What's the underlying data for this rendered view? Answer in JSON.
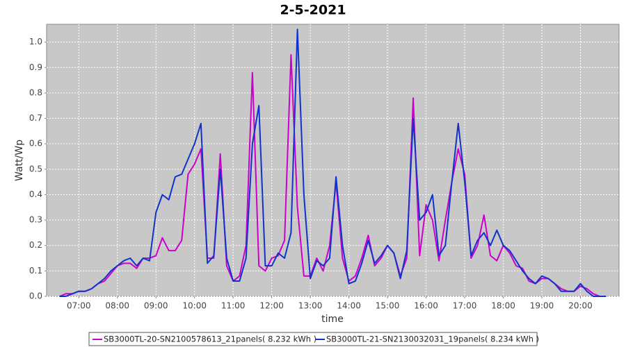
{
  "chart_data": {
    "type": "line",
    "title": "2-5-2021",
    "x_label": "time",
    "y_label": "Watt/Wp",
    "x": [
      "06:30",
      "06:40",
      "06:50",
      "07:00",
      "07:10",
      "07:20",
      "07:30",
      "07:40",
      "07:50",
      "08:00",
      "08:10",
      "08:20",
      "08:30",
      "08:40",
      "08:50",
      "09:00",
      "09:10",
      "09:20",
      "09:30",
      "09:40",
      "09:50",
      "10:00",
      "10:10",
      "10:20",
      "10:30",
      "10:40",
      "10:50",
      "11:00",
      "11:10",
      "11:20",
      "11:30",
      "11:40",
      "11:50",
      "12:00",
      "12:10",
      "12:20",
      "12:30",
      "12:40",
      "12:50",
      "13:00",
      "13:10",
      "13:20",
      "13:30",
      "13:40",
      "13:50",
      "14:00",
      "14:10",
      "14:20",
      "14:30",
      "14:40",
      "14:50",
      "15:00",
      "15:10",
      "15:20",
      "15:30",
      "15:40",
      "15:50",
      "16:00",
      "16:10",
      "16:20",
      "16:30",
      "16:40",
      "16:50",
      "17:00",
      "17:10",
      "17:20",
      "17:30",
      "17:40",
      "17:50",
      "18:00",
      "18:10",
      "18:20",
      "18:30",
      "18:40",
      "18:50",
      "19:00",
      "19:10",
      "19:20",
      "19:30",
      "19:40",
      "19:50",
      "20:00",
      "20:10",
      "20:20",
      "20:30",
      "20:40"
    ],
    "series": [
      {
        "name": "SB3000TL-20-SN2100578613_21panels( 8.232 kWh )",
        "color": "#cc00cc",
        "values": [
          0,
          0.01,
          0.01,
          0.02,
          0.02,
          0.03,
          0.05,
          0.06,
          0.09,
          0.12,
          0.13,
          0.13,
          0.11,
          0.15,
          0.15,
          0.16,
          0.23,
          0.18,
          0.18,
          0.22,
          0.48,
          0.52,
          0.58,
          0.15,
          0.15,
          0.56,
          0.12,
          0.06,
          0.08,
          0.2,
          0.88,
          0.12,
          0.1,
          0.15,
          0.16,
          0.22,
          0.95,
          0.35,
          0.08,
          0.08,
          0.15,
          0.1,
          0.2,
          0.45,
          0.15,
          0.06,
          0.08,
          0.15,
          0.24,
          0.12,
          0.15,
          0.2,
          0.17,
          0.08,
          0.15,
          0.78,
          0.16,
          0.36,
          0.3,
          0.14,
          0.3,
          0.45,
          0.58,
          0.48,
          0.15,
          0.2,
          0.32,
          0.16,
          0.14,
          0.2,
          0.17,
          0.12,
          0.11,
          0.06,
          0.05,
          0.07,
          0.07,
          0.05,
          0.03,
          0.02,
          0.02,
          0.04,
          0.03,
          0.01,
          0,
          0
        ]
      },
      {
        "name": "SB3000TL-21-SN2130032031_19panels( 8.234 kWh )",
        "color": "#1133cc",
        "values": [
          0,
          0,
          0.01,
          0.02,
          0.02,
          0.03,
          0.05,
          0.07,
          0.1,
          0.12,
          0.14,
          0.15,
          0.12,
          0.15,
          0.14,
          0.33,
          0.4,
          0.38,
          0.47,
          0.48,
          0.54,
          0.6,
          0.68,
          0.13,
          0.16,
          0.5,
          0.15,
          0.06,
          0.06,
          0.15,
          0.6,
          0.75,
          0.12,
          0.12,
          0.17,
          0.15,
          0.25,
          1.05,
          0.4,
          0.07,
          0.14,
          0.12,
          0.15,
          0.47,
          0.2,
          0.05,
          0.06,
          0.13,
          0.22,
          0.13,
          0.16,
          0.2,
          0.17,
          0.07,
          0.18,
          0.7,
          0.3,
          0.33,
          0.4,
          0.16,
          0.2,
          0.45,
          0.68,
          0.45,
          0.16,
          0.22,
          0.25,
          0.2,
          0.26,
          0.2,
          0.18,
          0.14,
          0.1,
          0.07,
          0.05,
          0.08,
          0.07,
          0.05,
          0.02,
          0.02,
          0.02,
          0.05,
          0.02,
          0,
          0,
          0
        ]
      }
    ],
    "xlim": [
      "06:10",
      "21:00"
    ],
    "xticks": [
      "07:00",
      "08:00",
      "09:00",
      "10:00",
      "11:00",
      "12:00",
      "13:00",
      "14:00",
      "15:00",
      "16:00",
      "17:00",
      "18:00",
      "19:00",
      "20:00"
    ],
    "ylim": [
      0,
      1.07
    ],
    "yticks": [
      {
        "value": 0,
        "label": "0.0"
      },
      0.1,
      0.2,
      0.3,
      0.4,
      0.5,
      0.6,
      0.7,
      0.8,
      0.9,
      {
        "value": 1,
        "label": "1.0"
      }
    ],
    "grid": true,
    "legend": "bottom"
  }
}
